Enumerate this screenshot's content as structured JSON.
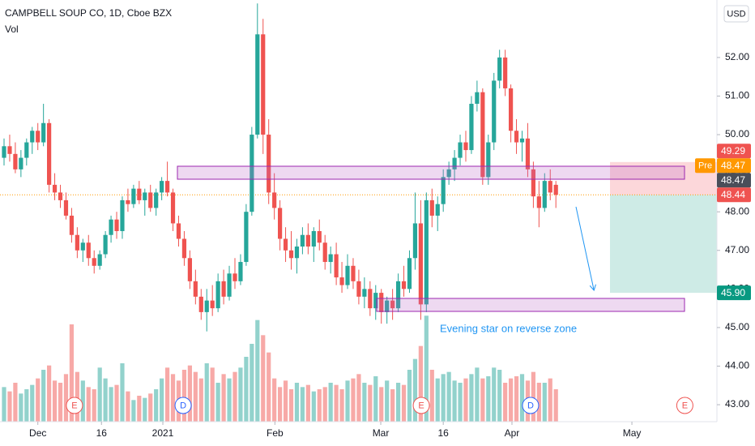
{
  "chart_data": {
    "type": "candlestick",
    "title": "CAMPBELL SOUP CO, 1D, Cboe BZX",
    "volume_label": "Vol",
    "currency": "USD",
    "up_color": "#26a69a",
    "down_color": "#ef5350",
    "open": [
      49.4,
      49.7,
      49.5,
      49.1,
      49.4,
      49.8,
      50.1,
      49.8,
      50.3,
      48.7,
      48.5,
      48.3,
      47.9,
      47.4,
      47.0,
      47.2,
      46.8,
      46.6,
      46.9,
      47.4,
      47.8,
      47.5,
      48.3,
      48.2,
      48.6,
      48.3,
      48.5,
      48.1,
      48.5,
      48.8,
      48.5,
      47.7,
      47.3,
      46.8,
      46.2,
      45.8,
      45.4,
      45.7,
      45.5,
      46.2,
      45.8,
      46.4,
      46.2,
      46.7,
      48.0,
      50.0,
      52.6,
      50.0,
      48.5,
      48.1,
      47.3,
      47.0,
      46.8,
      47.1,
      47.4,
      47.1,
      47.5,
      47.2,
      46.7,
      46.9,
      46.3,
      46.1,
      46.6,
      46.2,
      45.8,
      46.0,
      45.5,
      45.9,
      45.4,
      45.7,
      45.5,
      46.2,
      46.0,
      46.8,
      47.7,
      45.6,
      48.3,
      47.9,
      48.2,
      48.9,
      49.1,
      49.4,
      49.8,
      49.6,
      50.8,
      51.1,
      48.9,
      49.8,
      51.4,
      52.0,
      51.2,
      50.1,
      49.8,
      49.9,
      49.1,
      48.4,
      48.1,
      48.8,
      48.7
    ],
    "high": [
      49.9,
      50.0,
      49.8,
      49.6,
      49.9,
      50.2,
      50.3,
      50.8,
      50.4,
      49.0,
      48.7,
      48.5,
      48.1,
      47.6,
      47.3,
      47.4,
      47.0,
      47.0,
      47.5,
      47.9,
      48.0,
      48.4,
      48.6,
      48.7,
      48.8,
      48.6,
      48.7,
      48.6,
      48.9,
      49.3,
      48.6,
      47.9,
      47.5,
      47.0,
      46.5,
      46.0,
      46.0,
      46.1,
      46.4,
      46.5,
      46.6,
      46.8,
      46.9,
      48.2,
      50.2,
      53.4,
      53.0,
      50.4,
      49.0,
      48.3,
      47.6,
      47.5,
      47.3,
      47.6,
      47.7,
      47.6,
      47.8,
      47.4,
      47.1,
      47.2,
      46.7,
      46.9,
      46.8,
      46.5,
      46.3,
      46.2,
      46.1,
      46.0,
      45.8,
      46.0,
      46.4,
      46.6,
      47.0,
      48.5,
      48.3,
      48.5,
      48.6,
      48.4,
      49.1,
      49.3,
      49.6,
      50.0,
      50.1,
      51.0,
      51.4,
      51.2,
      50.0,
      51.6,
      52.2,
      52.2,
      51.3,
      50.4,
      50.1,
      50.3,
      49.3,
      48.8,
      49.0,
      49.1,
      48.8
    ],
    "low": [
      49.2,
      49.3,
      49.0,
      48.9,
      49.2,
      49.5,
      49.6,
      49.7,
      48.5,
      48.3,
      48.1,
      47.8,
      47.2,
      46.8,
      46.7,
      46.6,
      46.4,
      46.5,
      46.8,
      47.2,
      47.3,
      47.3,
      48.0,
      48.1,
      48.2,
      47.9,
      48.0,
      47.9,
      48.3,
      48.4,
      47.5,
      47.1,
      46.6,
      46.0,
      45.6,
      45.2,
      44.9,
      45.3,
      45.4,
      45.6,
      45.7,
      46.0,
      46.1,
      46.6,
      47.9,
      49.9,
      49.5,
      48.2,
      47.8,
      47.0,
      46.7,
      46.5,
      46.4,
      46.9,
      46.9,
      46.7,
      47.0,
      46.5,
      46.4,
      46.1,
      45.9,
      46.0,
      46.0,
      45.6,
      45.5,
      45.3,
      45.2,
      45.1,
      45.1,
      45.2,
      45.4,
      45.8,
      45.9,
      46.5,
      45.2,
      45.4,
      47.6,
      47.5,
      48.0,
      48.7,
      48.8,
      49.2,
      49.3,
      49.5,
      50.6,
      48.7,
      48.7,
      49.6,
      51.2,
      51.0,
      49.8,
      49.5,
      49.3,
      48.9,
      48.1,
      47.6,
      48.0,
      48.3,
      48.1
    ],
    "close": [
      49.7,
      49.5,
      49.1,
      49.4,
      49.8,
      50.1,
      49.8,
      50.3,
      48.7,
      48.5,
      48.3,
      47.9,
      47.4,
      47.0,
      47.2,
      46.8,
      46.6,
      46.9,
      47.4,
      47.8,
      47.5,
      48.3,
      48.2,
      48.6,
      48.3,
      48.5,
      48.1,
      48.5,
      48.8,
      48.5,
      47.7,
      47.3,
      46.8,
      46.2,
      45.8,
      45.4,
      45.7,
      45.5,
      46.2,
      45.8,
      46.4,
      46.2,
      46.7,
      48.0,
      50.0,
      52.6,
      50.0,
      48.5,
      48.1,
      47.3,
      47.0,
      46.8,
      47.1,
      47.4,
      47.1,
      47.5,
      47.2,
      46.7,
      46.9,
      46.3,
      46.1,
      46.6,
      46.2,
      45.8,
      46.0,
      45.5,
      45.9,
      45.4,
      45.7,
      45.5,
      46.2,
      46.0,
      46.8,
      47.7,
      45.6,
      48.3,
      47.9,
      48.2,
      48.9,
      49.1,
      49.4,
      49.8,
      49.6,
      50.8,
      51.1,
      48.9,
      49.8,
      51.4,
      52.0,
      51.2,
      50.1,
      49.8,
      49.9,
      49.1,
      48.4,
      48.1,
      48.8,
      48.5,
      48.44
    ],
    "volume": [
      1.6,
      1.4,
      1.8,
      1.3,
      1.5,
      1.7,
      2.0,
      2.4,
      2.6,
      1.9,
      1.8,
      2.2,
      4.5,
      2.3,
      1.9,
      1.6,
      1.5,
      2.5,
      2.0,
      1.6,
      1.7,
      2.7,
      1.4,
      1.0,
      1.2,
      1.1,
      1.3,
      1.5,
      2.0,
      2.5,
      2.2,
      1.9,
      2.4,
      2.6,
      2.3,
      2.0,
      2.7,
      2.5,
      1.8,
      2.2,
      2.0,
      2.3,
      2.5,
      3.0,
      3.6,
      4.7,
      4.0,
      3.2,
      2.0,
      1.6,
      1.9,
      1.5,
      1.8,
      1.6,
      1.7,
      1.4,
      1.5,
      1.6,
      1.8,
      1.7,
      1.5,
      1.9,
      2.0,
      2.2,
      1.8,
      1.7,
      2.1,
      1.6,
      1.9,
      1.5,
      1.8,
      1.7,
      2.4,
      2.9,
      3.5,
      4.9,
      2.4,
      2.0,
      2.2,
      2.3,
      1.9,
      1.8,
      2.0,
      2.2,
      2.5,
      2.0,
      2.1,
      2.5,
      2.4,
      1.8,
      2.0,
      2.1,
      2.2,
      1.9,
      2.3,
      1.8,
      1.8,
      2.0,
      1.5
    ],
    "volume_lim": [
      0,
      6
    ],
    "ylim": [
      42.56,
      53.49
    ],
    "yticks": [
      {
        "value": 43,
        "label": "43.00"
      },
      {
        "value": 44,
        "label": "44.00"
      },
      {
        "value": 45,
        "label": "45.00"
      },
      {
        "value": 46,
        "label": "46.00"
      },
      {
        "value": 47,
        "label": "47.00"
      },
      {
        "value": 48,
        "label": "48.00"
      },
      {
        "value": 49,
        "label": "49.00"
      },
      {
        "value": 50,
        "label": "50.00"
      },
      {
        "value": 51,
        "label": "51.00"
      },
      {
        "value": 52,
        "label": "52.00"
      }
    ],
    "xlim": [
      -0.72,
      126.6
    ],
    "xticks": [
      {
        "value": 6,
        "label": "Dec"
      },
      {
        "value": 17.3,
        "label": "16"
      },
      {
        "value": 28.2,
        "label": "2021"
      },
      {
        "value": 48.1,
        "label": "Feb"
      },
      {
        "value": 66.9,
        "label": "Mar"
      },
      {
        "value": 78,
        "label": "16"
      },
      {
        "value": 90.2,
        "label": "Apr"
      },
      {
        "value": 111.5,
        "label": "May"
      }
    ],
    "grid": false,
    "price_tags": [
      {
        "value": 49.29,
        "color": "#ef5350"
      },
      {
        "value": 48.47,
        "color": "#ff9800",
        "session": "Pre"
      },
      {
        "value": 48.47,
        "color": "#4a4e59"
      },
      {
        "value": 48.44,
        "color": "#ef5350"
      },
      {
        "value": {
          "value": 45.9,
          "label": "45.90"
        },
        "color": "#089981"
      }
    ],
    "annotation": "Evening star on reverse zone",
    "events": [
      {
        "label": "E",
        "x": 12.5,
        "color": "#ef5350"
      },
      {
        "label": "D",
        "x": 31.8,
        "color": "#2962ff"
      },
      {
        "label": "E",
        "x": 74.1,
        "color": "#ef5350"
      },
      {
        "label": "D",
        "x": 93.5,
        "color": "#2962ff"
      },
      {
        "label": "E",
        "x": 120.9,
        "color": "#ef5350"
      }
    ]
  }
}
